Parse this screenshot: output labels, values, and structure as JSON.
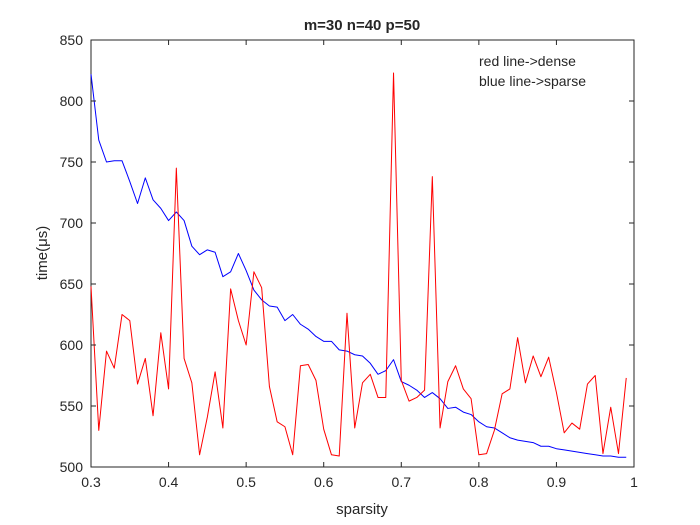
{
  "chart_data": {
    "type": "line",
    "title": "m=30 n=40 p=50",
    "xlabel": "sparsity",
    "ylabel": "time(μs)",
    "xlim": [
      0.3,
      1.0
    ],
    "ylim": [
      500,
      850
    ],
    "xticks": [
      0.3,
      0.4,
      0.5,
      0.6,
      0.7,
      0.8,
      0.9,
      1.0
    ],
    "xtick_labels": [
      "0.3",
      "0.4",
      "0.5",
      "0.6",
      "0.7",
      "0.8",
      "0.9",
      "1"
    ],
    "yticks": [
      500,
      550,
      600,
      650,
      700,
      750,
      800,
      850
    ],
    "ytick_labels": [
      "500",
      "550",
      "600",
      "650",
      "700",
      "750",
      "800",
      "850"
    ],
    "grid": false,
    "annotations": [
      "red line->dense",
      "blue line->sparse"
    ],
    "annotation_position": "top-right",
    "x": [
      0.3,
      0.31,
      0.32,
      0.33,
      0.34,
      0.35,
      0.36,
      0.37,
      0.38,
      0.39,
      0.4,
      0.41,
      0.42,
      0.43,
      0.44,
      0.45,
      0.46,
      0.47,
      0.48,
      0.49,
      0.5,
      0.51,
      0.52,
      0.53,
      0.54,
      0.55,
      0.56,
      0.57,
      0.58,
      0.59,
      0.6,
      0.61,
      0.62,
      0.63,
      0.64,
      0.65,
      0.66,
      0.67,
      0.68,
      0.69,
      0.7,
      0.71,
      0.72,
      0.73,
      0.74,
      0.75,
      0.76,
      0.77,
      0.78,
      0.79,
      0.8,
      0.81,
      0.82,
      0.83,
      0.84,
      0.85,
      0.86,
      0.87,
      0.88,
      0.89,
      0.9,
      0.91,
      0.92,
      0.93,
      0.94,
      0.95,
      0.96,
      0.97,
      0.98,
      0.99
    ],
    "series": [
      {
        "color": "#0000ff",
        "values": [
          822,
          768,
          750,
          751,
          751,
          734,
          716,
          737,
          719,
          712,
          702,
          709,
          702,
          681,
          674,
          678,
          676,
          656,
          660,
          675,
          661,
          645,
          637,
          632,
          631,
          620,
          625,
          617,
          613,
          607,
          603,
          603,
          596,
          595,
          592,
          591,
          585,
          576,
          579,
          588,
          570,
          567,
          563,
          557,
          561,
          556,
          548,
          549,
          545,
          543,
          537,
          533,
          532,
          528,
          524,
          522,
          521,
          520,
          517,
          517,
          515,
          514,
          513,
          512,
          511,
          510,
          509,
          509,
          508,
          508
        ],
        "role": "sparse"
      },
      {
        "color": "#ff0000",
        "values": [
          648,
          530,
          595,
          581,
          625,
          620,
          568,
          589,
          542,
          610,
          564,
          745,
          589,
          569,
          510,
          541,
          578,
          532,
          646,
          620,
          600,
          660,
          647,
          566,
          537,
          533,
          510,
          583,
          584,
          571,
          531,
          510,
          509,
          626,
          532,
          569,
          576,
          557,
          557,
          823,
          571,
          554,
          557,
          563,
          738,
          532,
          570,
          583,
          564,
          556,
          510,
          511,
          530,
          560,
          564,
          606,
          569,
          591,
          574,
          590,
          561,
          528,
          536,
          531,
          568,
          575,
          511,
          549,
          511,
          573
        ],
        "role": "dense"
      }
    ]
  }
}
